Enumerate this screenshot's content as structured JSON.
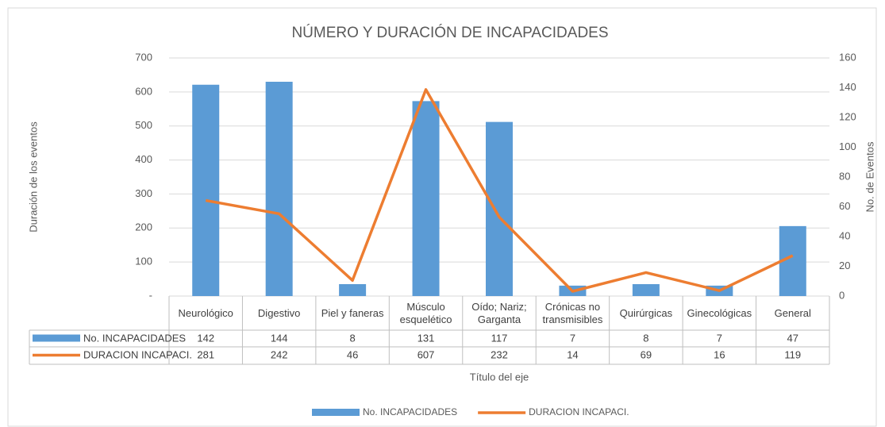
{
  "chart_data": {
    "type": "bar",
    "title": "NÚMERO Y DURACIÓN  DE INCAPACIDADES",
    "x_axis_label": "Título del eje",
    "y_axis_label": "Duración de los eventos",
    "y2_axis_label": "No. de Eventos",
    "categories": [
      "Neurológico",
      "Digestivo",
      "Piel y faneras",
      "Músculo esquelético",
      "Oído; Nariz; Garganta",
      "Crónicas no transmisibles",
      "Quirúrgicas",
      "Ginecológicas",
      "General"
    ],
    "series": [
      {
        "name": "No. INCAPACIDADES",
        "type": "bar",
        "color": "#5b9bd5",
        "axis": "y2",
        "values": [
          142,
          144,
          8,
          131,
          117,
          7,
          8,
          7,
          47
        ]
      },
      {
        "name": "DURACION INCAPACI.",
        "type": "line",
        "color": "#ed7d31",
        "values": [
          281,
          242,
          46,
          607,
          232,
          14,
          69,
          16,
          119
        ]
      }
    ],
    "ylim": [
      0,
      700
    ],
    "yticks": [
      {
        "value": 0,
        "label": "-"
      },
      100,
      200,
      300,
      400,
      500,
      600,
      700
    ],
    "y2lim": [
      0,
      160
    ],
    "y2ticks": [
      0,
      20,
      40,
      60,
      80,
      100,
      120,
      140,
      160
    ],
    "grid": true,
    "legend": "bottom"
  }
}
